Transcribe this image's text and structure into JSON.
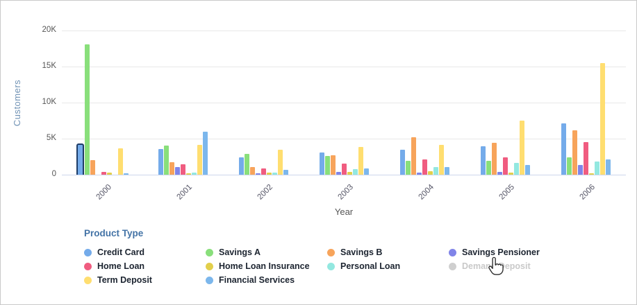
{
  "chart_data": {
    "type": "bar",
    "title": "",
    "xlabel": "Year",
    "ylabel": "Customers",
    "ylim": [
      0,
      20000
    ],
    "ytick_values": [
      0,
      5000,
      10000,
      15000,
      20000
    ],
    "ytick_labels": [
      "0",
      "5K",
      "10K",
      "15K",
      "20K"
    ],
    "categories": [
      "2000",
      "2001",
      "2002",
      "2003",
      "2004",
      "2005",
      "2006"
    ],
    "series": [
      {
        "name": "Credit Card",
        "color": "#74abea",
        "values": [
          4300,
          3600,
          2400,
          3100,
          3500,
          3900,
          7100
        ]
      },
      {
        "name": "Savings A",
        "color": "#89df7b",
        "values": [
          18100,
          4000,
          2900,
          2600,
          1900,
          1900,
          2400
        ]
      },
      {
        "name": "Savings B",
        "color": "#f7a45b",
        "values": [
          2000,
          1700,
          1100,
          2700,
          5200,
          4400,
          6200
        ]
      },
      {
        "name": "Savings Pensioner",
        "color": "#8084e8",
        "values": [
          0,
          1100,
          200,
          400,
          300,
          400,
          1300
        ]
      },
      {
        "name": "Home Loan",
        "color": "#f05c80",
        "values": [
          400,
          1400,
          900,
          1500,
          2100,
          2400,
          4500
        ]
      },
      {
        "name": "Home Loan Insurance",
        "color": "#e2cf4b",
        "values": [
          250,
          200,
          300,
          400,
          500,
          300,
          200
        ]
      },
      {
        "name": "Personal Loan",
        "color": "#93e8e0",
        "values": [
          0,
          300,
          300,
          800,
          1100,
          1600,
          1800
        ]
      },
      {
        "name": "Term Deposit",
        "color": "#ffde70",
        "values": [
          3700,
          4100,
          3500,
          3800,
          4100,
          7500,
          15500
        ]
      },
      {
        "name": "Financial Services",
        "color": "#7cb7ec",
        "values": [
          150,
          6000,
          700,
          900,
          1100,
          1300,
          2100
        ]
      }
    ],
    "hidden_series": [
      "Demand Deposit"
    ],
    "highlight": {
      "category": "2000",
      "series": "Credit Card",
      "outline_color": "#1e3c66"
    },
    "grid": true,
    "legend_position": "bottom",
    "axis_line_color": "#ccd6eb",
    "grid_color": "#e8e8e8",
    "tick_color": "#555555"
  },
  "legend": {
    "title": "Product Type",
    "items": [
      {
        "label": "Credit Card",
        "color": "#74abea",
        "disabled": false
      },
      {
        "label": "Savings A",
        "color": "#89df7b",
        "disabled": false
      },
      {
        "label": "Savings B",
        "color": "#f7a45b",
        "disabled": false
      },
      {
        "label": "Savings Pensioner",
        "color": "#8084e8",
        "disabled": false
      },
      {
        "label": "Home Loan",
        "color": "#f05c80",
        "disabled": false
      },
      {
        "label": "Home Loan Insurance",
        "color": "#e2cf4b",
        "disabled": false
      },
      {
        "label": "Personal Loan",
        "color": "#93e8e0",
        "disabled": false
      },
      {
        "label": "Demand Deposit",
        "color": "#cfcfcf",
        "disabled": true
      },
      {
        "label": "Term Deposit",
        "color": "#ffde70",
        "disabled": false
      },
      {
        "label": "Financial Services",
        "color": "#7cb7ec",
        "disabled": false
      }
    ]
  }
}
